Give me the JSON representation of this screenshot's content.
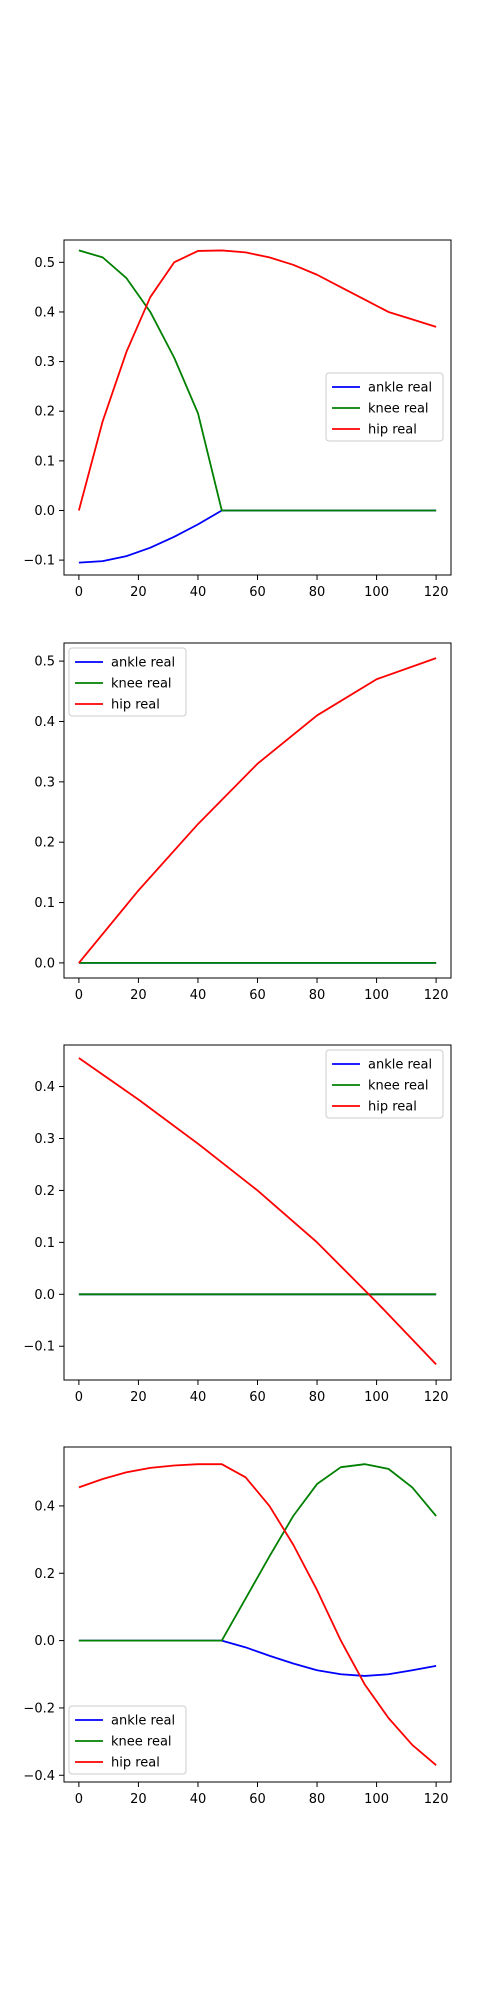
{
  "legend_labels": [
    "ankle real",
    "knee real",
    "hip real"
  ],
  "colors": {
    "ankle": "#0000ff",
    "knee": "#008000",
    "hip": "#ff0000",
    "axes": "#000000",
    "background": "#ffffff"
  },
  "chart_data": [
    {
      "type": "line",
      "xlim": [
        -5,
        125
      ],
      "ylim": [
        -0.13,
        0.545
      ],
      "xticks": [
        0,
        20,
        40,
        60,
        80,
        100,
        120
      ],
      "xtick_labels": [
        "0",
        "20",
        "40",
        "60",
        "80",
        "100",
        "120"
      ],
      "yticks": [
        -0.1,
        0.0,
        0.1,
        0.2,
        0.3,
        0.4,
        0.5
      ],
      "ytick_labels": [
        "−0.1",
        "0.0",
        "0.1",
        "0.2",
        "0.3",
        "0.4",
        "0.5"
      ],
      "grid": false,
      "legend_position": "center-right",
      "x": [
        0,
        8,
        16,
        24,
        32,
        40,
        48,
        56,
        64,
        72,
        80,
        88,
        96,
        104,
        112,
        120
      ],
      "series": [
        {
          "name": "ankle real",
          "color": "#0000ff",
          "values": [
            -0.105,
            -0.102,
            -0.092,
            -0.075,
            -0.053,
            -0.028,
            0.0,
            0.0,
            0.0,
            0.0,
            0.0,
            0.0,
            0.0,
            0.0,
            0.0,
            0.0
          ]
        },
        {
          "name": "knee real",
          "color": "#008000",
          "values": [
            0.524,
            0.51,
            0.468,
            0.4,
            0.308,
            0.196,
            0.0,
            0.0,
            0.0,
            0.0,
            0.0,
            0.0,
            0.0,
            0.0,
            0.0,
            0.0
          ]
        },
        {
          "name": "hip real",
          "color": "#ff0000",
          "values": [
            0.0,
            0.18,
            0.32,
            0.43,
            0.5,
            0.523,
            0.524,
            0.52,
            0.51,
            0.495,
            0.475,
            0.45,
            0.425,
            0.4,
            0.385,
            0.37
          ]
        }
      ]
    },
    {
      "type": "line",
      "xlim": [
        -5,
        125
      ],
      "ylim": [
        -0.025,
        0.53
      ],
      "xticks": [
        0,
        20,
        40,
        60,
        80,
        100,
        120
      ],
      "xtick_labels": [
        "0",
        "20",
        "40",
        "60",
        "80",
        "100",
        "120"
      ],
      "yticks": [
        0.0,
        0.1,
        0.2,
        0.3,
        0.4,
        0.5
      ],
      "ytick_labels": [
        "0.0",
        "0.1",
        "0.2",
        "0.3",
        "0.4",
        "0.5"
      ],
      "grid": false,
      "legend_position": "upper-left",
      "x": [
        0,
        20,
        40,
        60,
        80,
        100,
        120
      ],
      "series": [
        {
          "name": "ankle real",
          "color": "#0000ff",
          "values": [
            0.0,
            0.0,
            0.0,
            0.0,
            0.0,
            0.0,
            0.0
          ]
        },
        {
          "name": "knee real",
          "color": "#008000",
          "values": [
            0.0,
            0.0,
            0.0,
            0.0,
            0.0,
            0.0,
            0.0
          ]
        },
        {
          "name": "hip real",
          "color": "#ff0000",
          "values": [
            0.0,
            0.12,
            0.23,
            0.33,
            0.41,
            0.47,
            0.505
          ]
        }
      ]
    },
    {
      "type": "line",
      "xlim": [
        -5,
        125
      ],
      "ylim": [
        -0.165,
        0.48
      ],
      "xticks": [
        0,
        20,
        40,
        60,
        80,
        100,
        120
      ],
      "xtick_labels": [
        "0",
        "20",
        "40",
        "60",
        "80",
        "100",
        "120"
      ],
      "yticks": [
        -0.1,
        0.0,
        0.1,
        0.2,
        0.3,
        0.4
      ],
      "ytick_labels": [
        "−0.1",
        "0.0",
        "0.1",
        "0.2",
        "0.3",
        "0.4"
      ],
      "grid": false,
      "legend_position": "upper-right",
      "x": [
        0,
        20,
        40,
        60,
        80,
        100,
        120
      ],
      "series": [
        {
          "name": "ankle real",
          "color": "#0000ff",
          "values": [
            0.0,
            0.0,
            0.0,
            0.0,
            0.0,
            0.0,
            0.0
          ]
        },
        {
          "name": "knee real",
          "color": "#008000",
          "values": [
            0.0,
            0.0,
            0.0,
            0.0,
            0.0,
            0.0,
            0.0
          ]
        },
        {
          "name": "hip real",
          "color": "#ff0000",
          "values": [
            0.455,
            0.375,
            0.29,
            0.2,
            0.1,
            -0.015,
            -0.135
          ]
        }
      ]
    },
    {
      "type": "line",
      "xlim": [
        -5,
        125
      ],
      "ylim": [
        -0.42,
        0.575
      ],
      "xticks": [
        0,
        20,
        40,
        60,
        80,
        100,
        120
      ],
      "xtick_labels": [
        "0",
        "20",
        "40",
        "60",
        "80",
        "100",
        "120"
      ],
      "yticks": [
        -0.4,
        -0.2,
        0.0,
        0.2,
        0.4
      ],
      "ytick_labels": [
        "−0.4",
        "−0.2",
        "0.0",
        "0.2",
        "0.4"
      ],
      "grid": false,
      "legend_position": "lower-left",
      "x": [
        0,
        8,
        16,
        24,
        32,
        40,
        48,
        56,
        64,
        72,
        80,
        88,
        96,
        104,
        112,
        120
      ],
      "series": [
        {
          "name": "ankle real",
          "color": "#0000ff",
          "values": [
            0.0,
            0.0,
            0.0,
            0.0,
            0.0,
            0.0,
            0.0,
            -0.02,
            -0.045,
            -0.068,
            -0.088,
            -0.1,
            -0.105,
            -0.1,
            -0.088,
            -0.075
          ]
        },
        {
          "name": "knee real",
          "color": "#008000",
          "values": [
            0.0,
            0.0,
            0.0,
            0.0,
            0.0,
            0.0,
            0.0,
            0.125,
            0.25,
            0.37,
            0.465,
            0.515,
            0.524,
            0.51,
            0.455,
            0.37
          ]
        },
        {
          "name": "hip real",
          "color": "#ff0000",
          "values": [
            0.455,
            0.48,
            0.5,
            0.513,
            0.52,
            0.524,
            0.524,
            0.485,
            0.4,
            0.285,
            0.15,
            0.0,
            -0.13,
            -0.23,
            -0.31,
            -0.37
          ]
        }
      ]
    }
  ]
}
